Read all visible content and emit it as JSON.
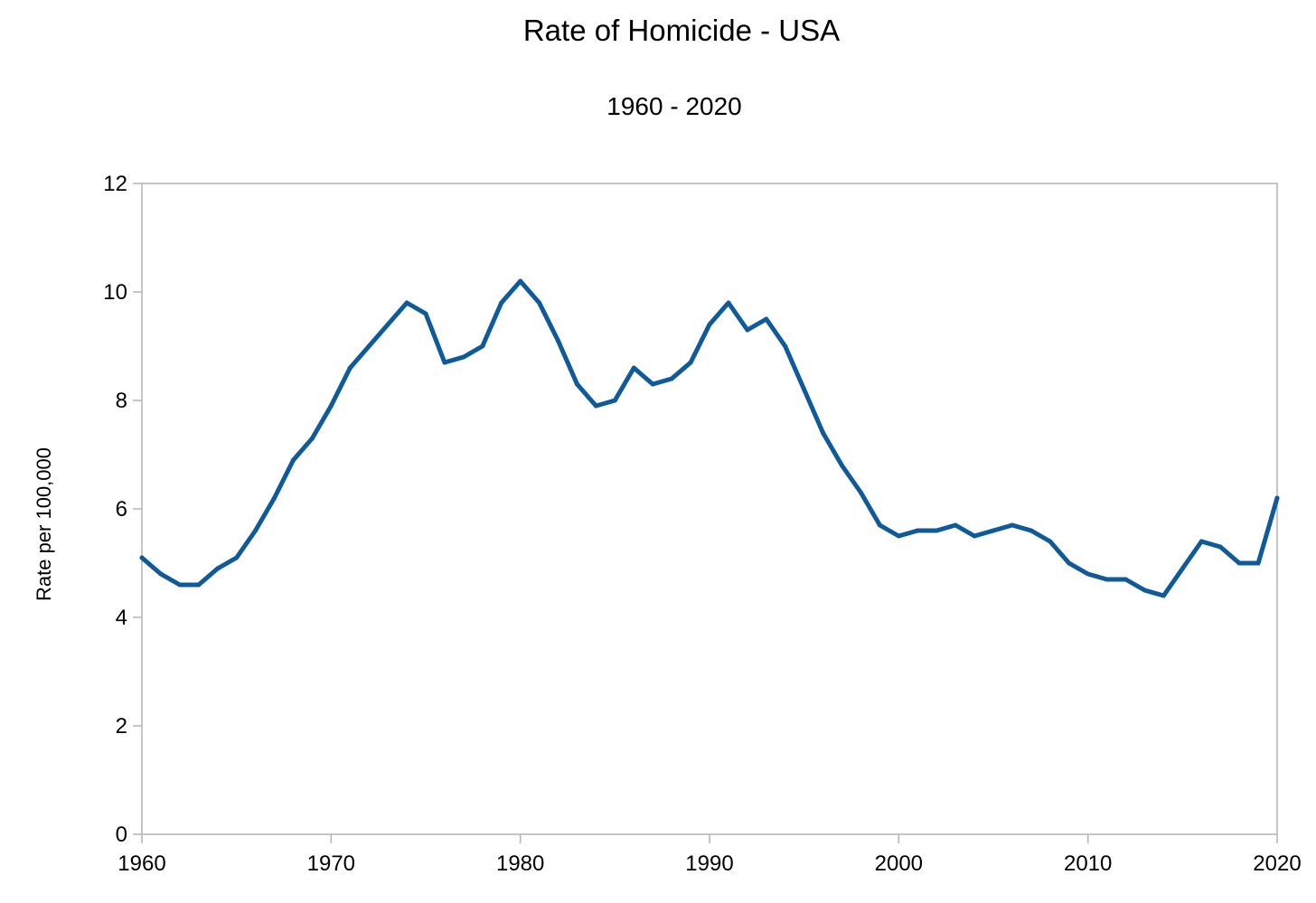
{
  "chart_data": {
    "type": "line",
    "title": "Rate of Homicide - USA",
    "subtitle": "1960 - 2020",
    "xlabel": "",
    "ylabel": "Rate per 100,000",
    "xlim": [
      1960,
      2020
    ],
    "ylim": [
      0,
      12
    ],
    "x_ticks": [
      "1960",
      "1970",
      "1980",
      "1990",
      "2000",
      "2010",
      "2020"
    ],
    "y_ticks": [
      "0",
      "2",
      "4",
      "6",
      "8",
      "10",
      "12"
    ],
    "grid": false,
    "legend": "none",
    "line_color": "#0f5a99",
    "x": [
      1960,
      1961,
      1962,
      1963,
      1964,
      1965,
      1966,
      1967,
      1968,
      1969,
      1970,
      1971,
      1972,
      1973,
      1974,
      1975,
      1976,
      1977,
      1978,
      1979,
      1980,
      1981,
      1982,
      1983,
      1984,
      1985,
      1986,
      1987,
      1988,
      1989,
      1990,
      1991,
      1992,
      1993,
      1994,
      1995,
      1996,
      1997,
      1998,
      1999,
      2000,
      2001,
      2002,
      2003,
      2004,
      2005,
      2006,
      2007,
      2008,
      2009,
      2010,
      2011,
      2012,
      2013,
      2014,
      2015,
      2016,
      2017,
      2018,
      2019,
      2020
    ],
    "series": [
      {
        "values": [
          5.1,
          4.8,
          4.6,
          4.6,
          4.9,
          5.1,
          5.6,
          6.2,
          6.9,
          7.3,
          7.9,
          8.6,
          9.0,
          9.4,
          9.8,
          9.6,
          8.7,
          8.8,
          9.0,
          9.8,
          10.2,
          9.8,
          9.1,
          8.3,
          7.9,
          8.0,
          8.6,
          8.3,
          8.4,
          8.7,
          9.4,
          9.8,
          9.3,
          9.5,
          9.0,
          8.2,
          7.4,
          6.8,
          6.3,
          5.7,
          5.5,
          5.6,
          5.6,
          5.7,
          5.5,
          5.6,
          5.7,
          5.6,
          5.4,
          5.0,
          4.8,
          4.7,
          4.7,
          4.5,
          4.4,
          4.9,
          5.4,
          5.3,
          5.0,
          5.0,
          6.2
        ]
      }
    ]
  }
}
